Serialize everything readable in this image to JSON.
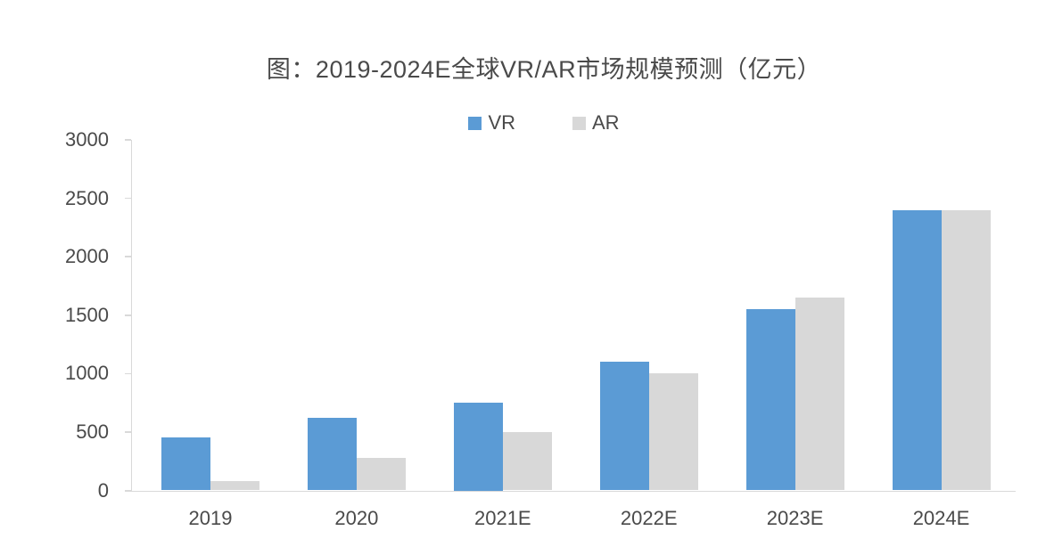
{
  "figure": {
    "title": "图：2019-2024E全球VR/AR市场规模预测（亿元）"
  },
  "legend": {
    "items": [
      {
        "label": "VR",
        "color": "#5B9BD5"
      },
      {
        "label": "AR",
        "color": "#D8D8D8"
      }
    ]
  },
  "axes": {
    "y_tick_labels": [
      "0",
      "500",
      "1000",
      "1500",
      "2000",
      "2500",
      "3000"
    ],
    "x_tick_labels": [
      "2019",
      "2020",
      "2021E",
      "2022E",
      "2023E",
      "2024E"
    ]
  },
  "colors": {
    "vr_series": "#5B9BD5",
    "ar_series": "#D8D8D8",
    "axis_line": "#D9D9D9",
    "text": "#4A4A4A",
    "background": "#FFFFFF"
  },
  "chart_data": {
    "type": "bar",
    "title": "图：2019-2024E全球VR/AR市场规模预测（亿元）",
    "categories": [
      "2019",
      "2020",
      "2021E",
      "2022E",
      "2023E",
      "2024E"
    ],
    "series": [
      {
        "name": "VR",
        "color": "#5B9BD5",
        "values": [
          450,
          620,
          750,
          1100,
          1550,
          2400
        ]
      },
      {
        "name": "AR",
        "color": "#D8D8D8",
        "values": [
          80,
          280,
          500,
          1000,
          1650,
          2400
        ]
      }
    ],
    "xlabel": "",
    "ylabel": "",
    "unit": "亿元",
    "ylim": [
      0,
      3000
    ],
    "yticks": [
      0,
      500,
      1000,
      1500,
      2000,
      2500,
      3000
    ],
    "grid": false,
    "legend_position": "top-center",
    "bar_gap_within_group": 0
  }
}
